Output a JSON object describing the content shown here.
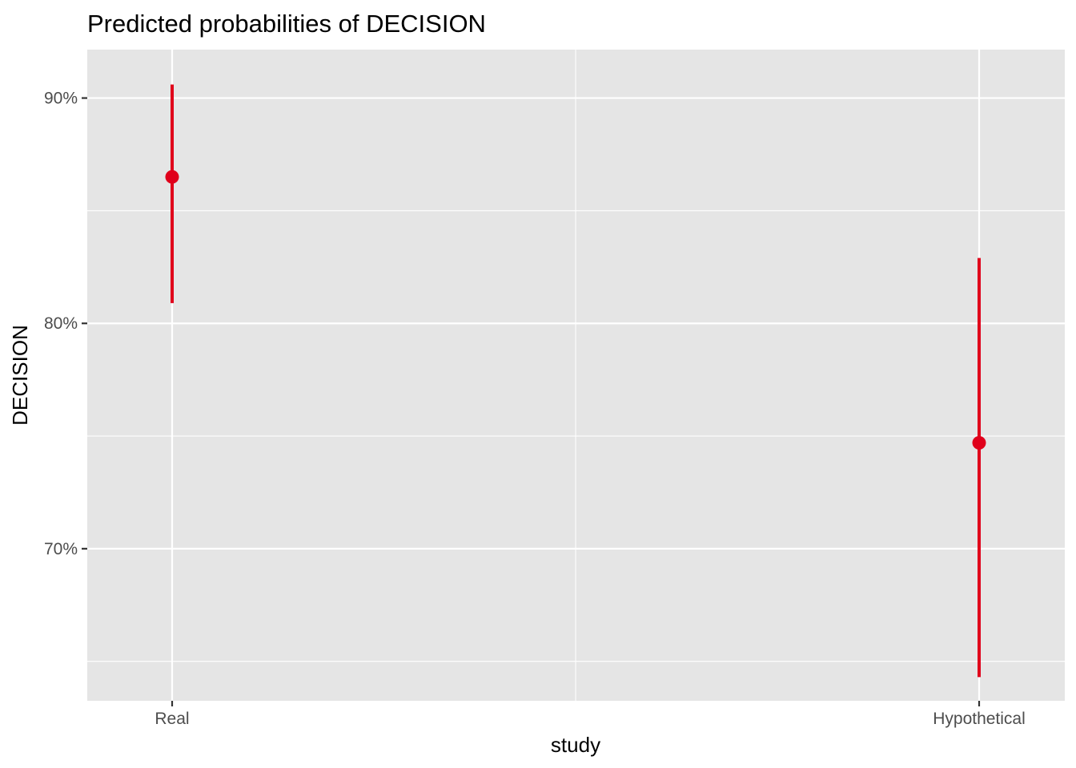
{
  "chart_data": {
    "type": "scatter",
    "title": "Predicted probabilities of DECISION",
    "xlabel": "study",
    "ylabel": "DECISION",
    "categories": [
      "Real",
      "Hypothetical"
    ],
    "series": [
      {
        "values": [
          0.865,
          0.747
        ],
        "ci_lower": [
          0.809,
          0.643
        ],
        "ci_upper": [
          0.906,
          0.829
        ]
      }
    ],
    "ylim": [
      0.6325,
      0.9215
    ],
    "yticks": [
      0.7,
      0.8,
      0.9
    ],
    "ytick_labels": [
      "70%",
      "80%",
      "90%"
    ],
    "grid": true,
    "legend": "none",
    "colors": {
      "panel_background": "#e5e5e5",
      "grid_major": "#ffffff",
      "point": "#e0001b",
      "axis_tick": "#333333"
    }
  }
}
